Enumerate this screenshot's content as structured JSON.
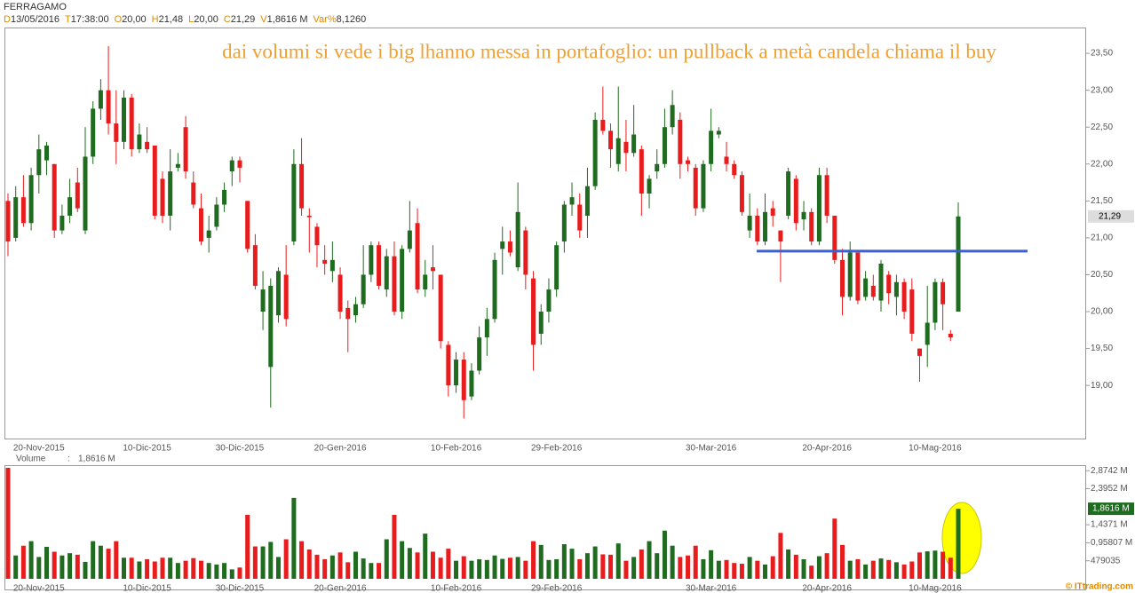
{
  "header": {
    "symbol": "FERRAGAMO",
    "fields": [
      {
        "key": "D",
        "text": "13/05/2016"
      },
      {
        "key": "T",
        "text": "17:38:00"
      },
      {
        "key": "O",
        "text": "20,00"
      },
      {
        "key": "H",
        "text": "21,48"
      },
      {
        "key": "L",
        "text": "20,00"
      },
      {
        "key": "C",
        "text": "21,29"
      },
      {
        "key": "V",
        "text": "1,8616 M"
      },
      {
        "key": "Var%",
        "text": "8,1260"
      }
    ]
  },
  "footer": "© ITtrading.com",
  "chart_data": {
    "type": "candlestick",
    "annotation": "dai volumi si vede i big lhanno messa in portafoglio: un pullback a metà candela chiama il buy",
    "up_color": "#1f6b1f",
    "down_color": "#e81c1c",
    "categories": [
      null,
      null,
      null,
      null,
      "20-Nov-2015",
      null,
      null,
      null,
      null,
      null,
      null,
      null,
      null,
      null,
      null,
      null,
      null,
      null,
      "10-Dic-2015",
      null,
      null,
      null,
      null,
      null,
      null,
      null,
      null,
      null,
      null,
      null,
      "30-Dic-2015",
      null,
      null,
      null,
      null,
      null,
      null,
      null,
      null,
      null,
      null,
      null,
      null,
      "20-Gen-2016",
      null,
      null,
      null,
      null,
      null,
      null,
      null,
      null,
      null,
      null,
      null,
      null,
      null,
      null,
      "10-Feb-2016",
      null,
      null,
      null,
      null,
      null,
      null,
      null,
      null,
      null,
      null,
      null,
      null,
      "29-Feb-2016",
      null,
      null,
      null,
      null,
      null,
      null,
      null,
      null,
      null,
      null,
      null,
      null,
      null,
      null,
      null,
      null,
      null,
      null,
      null,
      "30-Mar-2016",
      null,
      null,
      null,
      null,
      null,
      null,
      null,
      null,
      null,
      null,
      null,
      null,
      null,
      null,
      "20-Apr-2016",
      null,
      null,
      null,
      null,
      null,
      null,
      null,
      null,
      null,
      null,
      null,
      null,
      null,
      "10-Mag-2016",
      null,
      null,
      null
    ],
    "open": [
      21.5,
      21.0,
      21.55,
      21.2,
      21.85,
      22.05,
      22.0,
      21.1,
      21.3,
      21.75,
      21.1,
      22.1,
      22.75,
      23.0,
      22.55,
      22.3,
      22.9,
      22.2,
      22.3,
      22.25,
      21.8,
      21.3,
      21.95,
      22.5,
      21.75,
      21.4,
      21.0,
      21.15,
      21.45,
      21.9,
      22.05,
      21.5,
      20.9,
      20.0,
      19.25,
      19.95,
      20.5,
      20.95,
      22.0,
      21.3,
      21.15,
      20.7,
      20.55,
      20.5,
      20.05,
      19.95,
      20.1,
      20.5,
      20.9,
      20.3,
      20.75,
      20.0,
      20.85,
      21.2,
      20.3,
      20.6,
      20.5,
      19.55,
      19.0,
      19.35,
      18.85,
      19.2,
      19.65,
      19.9,
      20.85,
      20.95,
      20.6,
      21.1,
      20.45,
      19.7,
      20.0,
      20.3,
      20.95,
      21.45,
      21.45,
      21.3,
      21.7,
      22.6,
      22.45,
      22.0,
      22.3,
      22.15,
      22.2,
      21.6,
      21.9,
      22.0,
      22.5,
      22.6,
      22.05,
      21.95,
      21.4,
      22.0,
      22.4,
      22.1,
      22.0,
      21.85,
      21.1,
      21.3,
      20.95,
      21.4,
      21.1,
      21.3,
      21.8,
      21.25,
      21.35,
      20.95,
      21.85,
      21.3,
      20.7,
      20.2,
      20.8,
      20.2,
      20.35,
      20.15,
      20.5,
      20.2,
      20.4,
      20.3,
      19.5,
      19.55,
      19.85,
      20.4,
      19.7,
      20.0
    ],
    "high": [
      21.6,
      21.7,
      21.85,
      21.95,
      22.4,
      22.3,
      22.0,
      21.45,
      21.8,
      21.95,
      22.5,
      22.85,
      23.15,
      23.6,
      23.0,
      23.0,
      22.95,
      22.55,
      22.5,
      22.25,
      21.9,
      22.2,
      22.15,
      22.65,
      21.9,
      21.6,
      21.3,
      21.55,
      21.75,
      22.1,
      22.1,
      21.5,
      21.05,
      20.55,
      20.45,
      20.6,
      20.9,
      22.2,
      22.35,
      21.4,
      21.2,
      20.9,
      20.95,
      20.6,
      20.15,
      20.2,
      20.9,
      20.95,
      20.95,
      20.85,
      20.95,
      20.9,
      21.5,
      21.4,
      20.7,
      20.9,
      20.5,
      19.6,
      19.45,
      19.45,
      19.3,
      19.8,
      20.05,
      20.8,
      21.15,
      21.1,
      21.75,
      21.15,
      20.55,
      20.1,
      20.45,
      20.95,
      21.5,
      21.75,
      21.6,
      21.95,
      22.7,
      23.05,
      22.55,
      23.05,
      22.6,
      22.8,
      22.25,
      21.85,
      22.2,
      22.75,
      23.0,
      22.7,
      22.1,
      22.0,
      22.05,
      22.75,
      22.5,
      22.3,
      22.05,
      21.9,
      21.6,
      21.4,
      21.6,
      21.5,
      21.1,
      21.95,
      21.85,
      21.5,
      21.4,
      21.95,
      21.95,
      21.3,
      20.85,
      20.95,
      20.8,
      20.55,
      20.5,
      20.7,
      20.55,
      20.5,
      20.45,
      20.45,
      19.5,
      20.35,
      20.45,
      20.45,
      19.75,
      21.48
    ],
    "low": [
      20.75,
      20.95,
      21.15,
      21.1,
      21.6,
      21.85,
      21.0,
      21.05,
      21.2,
      21.35,
      21.05,
      22.0,
      22.6,
      22.4,
      22.0,
      22.2,
      22.1,
      22.15,
      22.15,
      21.25,
      21.2,
      21.1,
      21.9,
      21.8,
      21.4,
      20.9,
      20.8,
      21.1,
      21.35,
      21.7,
      21.75,
      20.8,
      20.3,
      19.75,
      18.7,
      19.85,
      19.8,
      20.9,
      21.3,
      20.8,
      20.6,
      20.5,
      20.4,
      19.9,
      19.45,
      19.85,
      20.05,
      20.4,
      20.3,
      20.2,
      19.95,
      19.9,
      20.8,
      20.25,
      20.2,
      20.3,
      19.5,
      18.85,
      18.9,
      18.55,
      18.8,
      19.15,
      19.4,
      19.85,
      20.5,
      20.75,
      20.55,
      20.3,
      19.2,
      19.55,
      19.85,
      20.2,
      20.8,
      21.3,
      21.0,
      21.0,
      21.65,
      22.4,
      21.95,
      21.9,
      21.9,
      22.1,
      21.3,
      21.4,
      21.8,
      21.95,
      22.4,
      21.8,
      21.9,
      21.3,
      21.35,
      21.9,
      22.35,
      21.9,
      21.8,
      21.3,
      21.0,
      20.9,
      20.9,
      21.15,
      20.4,
      21.25,
      21.1,
      21.1,
      20.9,
      20.9,
      21.2,
      20.65,
      19.95,
      20.15,
      20.1,
      20.15,
      20.15,
      20.0,
      20.1,
      19.95,
      19.9,
      19.6,
      19.05,
      19.25,
      19.75,
      19.75,
      19.6,
      20.0
    ],
    "close": [
      20.95,
      21.55,
      21.2,
      21.85,
      22.2,
      22.25,
      21.1,
      21.3,
      21.55,
      21.4,
      22.1,
      22.75,
      23.0,
      22.55,
      22.3,
      22.9,
      22.2,
      22.4,
      22.2,
      21.3,
      21.3,
      21.9,
      22.0,
      21.9,
      21.45,
      20.95,
      21.1,
      21.45,
      21.65,
      22.05,
      21.95,
      20.85,
      20.35,
      20.3,
      20.35,
      20.55,
      19.9,
      22.0,
      21.4,
      21.28,
      20.9,
      20.65,
      20.7,
      20.0,
      19.9,
      20.1,
      20.5,
      20.9,
      20.35,
      20.75,
      20.0,
      20.85,
      21.1,
      20.3,
      20.5,
      20.55,
      19.6,
      19.0,
      19.35,
      18.8,
      19.2,
      19.65,
      19.9,
      20.7,
      20.95,
      20.8,
      21.35,
      20.5,
      19.55,
      20.0,
      20.3,
      20.9,
      21.45,
      21.55,
      21.1,
      21.7,
      22.6,
      22.45,
      22.2,
      22.35,
      22.15,
      22.4,
      21.6,
      21.8,
      22.0,
      22.5,
      22.8,
      22.0,
      22.0,
      21.4,
      22.0,
      22.45,
      22.45,
      22.0,
      21.85,
      21.35,
      21.3,
      20.95,
      21.35,
      21.3,
      20.95,
      21.9,
      21.2,
      21.35,
      20.95,
      21.85,
      21.3,
      20.7,
      20.2,
      20.8,
      20.15,
      20.45,
      20.2,
      20.65,
      20.25,
      20.4,
      20.0,
      19.7,
      19.4,
      19.85,
      20.4,
      20.1,
      19.65,
      21.29
    ],
    "ylim": [
      18.28,
      23.85
    ],
    "yticks": [
      {
        "value": 19.0,
        "label": "19,00"
      },
      {
        "value": 19.5,
        "label": "19,50"
      },
      {
        "value": 20.0,
        "label": "20,00"
      },
      {
        "value": 20.5,
        "label": "20,50"
      },
      {
        "value": 21.0,
        "label": "21,00"
      },
      {
        "value": 21.5,
        "label": "21,50"
      },
      {
        "value": 22.0,
        "label": "22,00"
      },
      {
        "value": 22.5,
        "label": "22,50"
      },
      {
        "value": 23.0,
        "label": "23,00"
      },
      {
        "value": 23.5,
        "label": "23,50"
      }
    ],
    "hline": {
      "value": 20.82,
      "color": "#3a5fd8"
    },
    "last_price": {
      "value": 21.29,
      "label": "21,29"
    },
    "volume": {
      "title": "Volume",
      "separator": ":",
      "values": [
        2950000,
        620000,
        880000,
        1000000,
        580000,
        850000,
        720000,
        620000,
        680000,
        640000,
        450000,
        1000000,
        880000,
        800000,
        1000000,
        560000,
        560000,
        460000,
        520000,
        460000,
        560000,
        560000,
        420000,
        480000,
        550000,
        480000,
        420000,
        380000,
        420000,
        250000,
        300000,
        1700000,
        860000,
        860000,
        980000,
        580000,
        1050000,
        2150000,
        1000000,
        780000,
        640000,
        520000,
        620000,
        700000,
        440000,
        720000,
        540000,
        420000,
        420000,
        1050000,
        1700000,
        1000000,
        820000,
        700000,
        1200000,
        720000,
        560000,
        800000,
        480000,
        600000,
        480000,
        520000,
        500000,
        620000,
        530000,
        560000,
        580000,
        480000,
        1000000,
        900000,
        500000,
        520000,
        920000,
        800000,
        520000,
        680000,
        860000,
        650000,
        640000,
        940000,
        480000,
        580000,
        780000,
        1000000,
        680000,
        1280000,
        880000,
        580000,
        620000,
        880000,
        520000,
        760000,
        480000,
        500000,
        420000,
        400000,
        580000,
        480000,
        380000,
        600000,
        1220000,
        780000,
        640000,
        520000,
        350000,
        600000,
        680000,
        1600000,
        900000,
        480000,
        520000,
        380000,
        480000,
        540000,
        500000,
        440000,
        380000,
        460000,
        700000,
        730000,
        750000,
        720000,
        560000,
        1861600
      ],
      "ylim": [
        0,
        3020000
      ],
      "yticks": [
        {
          "value": 479035,
          "label": "479035"
        },
        {
          "value": 958070,
          "label": "0,95807 M"
        },
        {
          "value": 1437100,
          "label": "1,4371 M"
        },
        {
          "value": 2395200,
          "label": "2,3952 M"
        },
        {
          "value": 2874200,
          "label": "2,8742 M"
        }
      ],
      "last": {
        "value": 1861600,
        "label": "1,8616 M"
      }
    }
  }
}
